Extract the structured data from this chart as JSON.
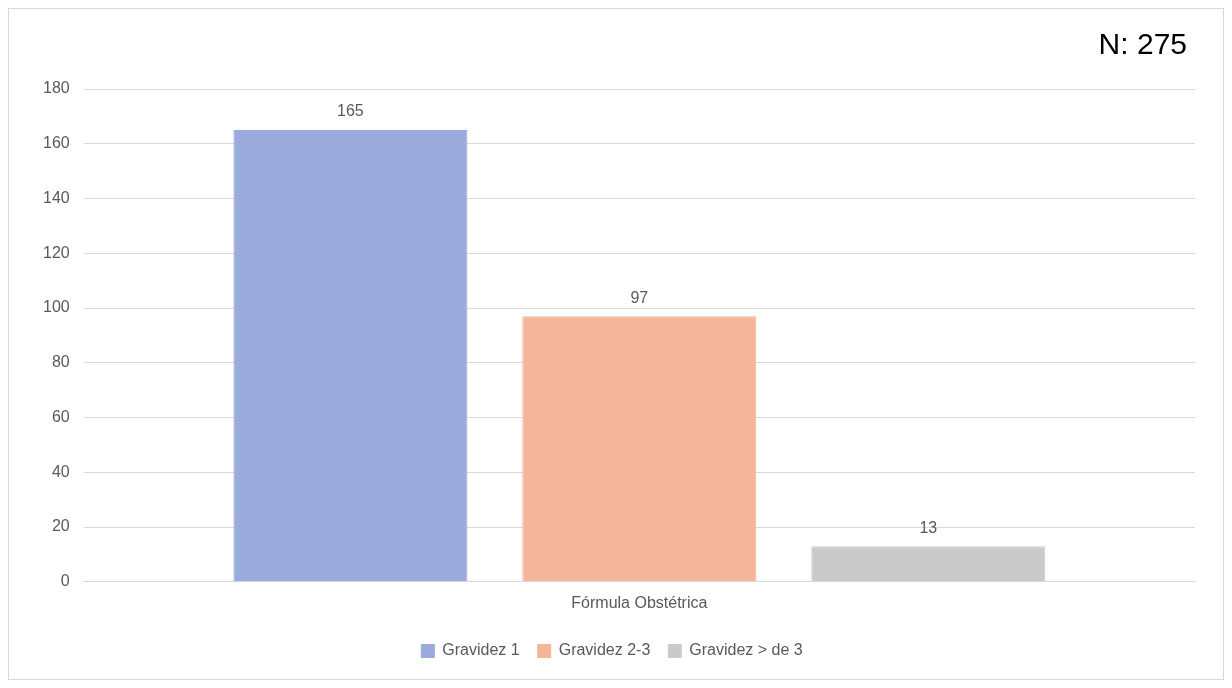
{
  "chart_data": {
    "type": "bar",
    "categories": [
      "Fórmula Obstétrica"
    ],
    "series": [
      {
        "name": "Gravidez 1",
        "color": "#9aabdc",
        "values": [
          165
        ]
      },
      {
        "name": "Gravidez 2-3",
        "color": "#f5b59a",
        "values": [
          97
        ]
      },
      {
        "name": "Gravidez > de 3",
        "color": "#cacaca",
        "values": [
          13
        ]
      }
    ],
    "ylim": [
      0,
      180
    ],
    "yticks": [
      0,
      20,
      40,
      60,
      80,
      100,
      120,
      140,
      160,
      180
    ],
    "grid": "y",
    "legend": "bottom",
    "data_labels": true,
    "annotations": [
      "N: 275"
    ]
  }
}
